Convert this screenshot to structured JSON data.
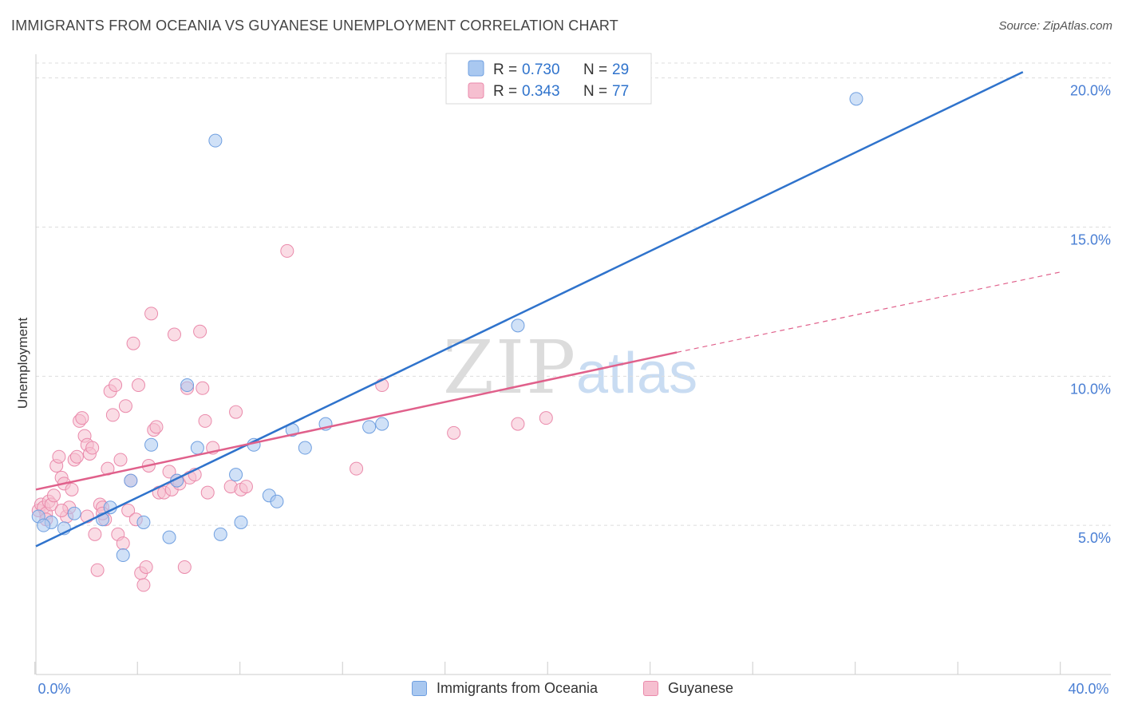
{
  "header": {
    "title": "IMMIGRANTS FROM OCEANIA VS GUYANESE UNEMPLOYMENT CORRELATION CHART",
    "source": "Source: ZipAtlas.com"
  },
  "colors": {
    "blue_fill": "#a9c8f0",
    "blue_stroke": "#6f9fe0",
    "blue_line": "#2f73cc",
    "pink_fill": "#f6bfd0",
    "pink_stroke": "#ea8aab",
    "pink_line": "#e0608b",
    "tick": "#4a7fd4",
    "grid": "#dddddd"
  },
  "legend": {
    "r_label": "R =",
    "n_label": "N =",
    "series": [
      {
        "r": "0.730",
        "n": "29"
      },
      {
        "r": "0.343",
        "n": "77"
      }
    ]
  },
  "bottom_legend": {
    "items": [
      {
        "label": "Immigrants from Oceania"
      },
      {
        "label": "Guyanese"
      }
    ]
  },
  "watermark": {
    "zip": "ZIP",
    "atlas": "atlas"
  },
  "chart_data": {
    "type": "scatter",
    "title": "IMMIGRANTS FROM OCEANIA VS GUYANESE UNEMPLOYMENT CORRELATION CHART",
    "xlabel": "",
    "ylabel": "Unemployment",
    "xlim": [
      0,
      40
    ],
    "ylim": [
      0,
      20.5
    ],
    "x_tick_labels": [
      "0.0%",
      "40.0%"
    ],
    "y_ticks": [
      5,
      10,
      15,
      20
    ],
    "y_tick_labels": [
      "5.0%",
      "10.0%",
      "15.0%",
      "20.0%"
    ],
    "series": [
      {
        "name": "Immigrants from Oceania",
        "r": 0.73,
        "n": 29,
        "points": [
          [
            0.1,
            5.3
          ],
          [
            0.6,
            5.1
          ],
          [
            1.1,
            4.9
          ],
          [
            1.5,
            5.4
          ],
          [
            2.6,
            5.2
          ],
          [
            2.9,
            5.6
          ],
          [
            3.4,
            4.0
          ],
          [
            3.7,
            6.5
          ],
          [
            4.2,
            5.1
          ],
          [
            4.5,
            7.7
          ],
          [
            5.2,
            4.6
          ],
          [
            5.5,
            6.5
          ],
          [
            5.9,
            9.7
          ],
          [
            6.3,
            7.6
          ],
          [
            7.0,
            17.9
          ],
          [
            7.2,
            4.7
          ],
          [
            7.8,
            6.7
          ],
          [
            8.0,
            5.1
          ],
          [
            8.5,
            7.7
          ],
          [
            9.1,
            6.0
          ],
          [
            9.4,
            5.8
          ],
          [
            10.0,
            8.2
          ],
          [
            10.5,
            7.6
          ],
          [
            11.3,
            8.4
          ],
          [
            13.0,
            8.3
          ],
          [
            13.5,
            8.4
          ],
          [
            18.8,
            11.7
          ],
          [
            32.0,
            19.3
          ],
          [
            0.3,
            5.0
          ]
        ],
        "trend": {
          "x1": 0.0,
          "y1": 4.3,
          "x2": 38.5,
          "y2": 20.2
        }
      },
      {
        "name": "Guyanese",
        "r": 0.343,
        "n": 77,
        "points": [
          [
            0.1,
            5.5
          ],
          [
            0.2,
            5.7
          ],
          [
            0.3,
            5.6
          ],
          [
            0.4,
            5.4
          ],
          [
            0.5,
            5.8
          ],
          [
            0.6,
            5.7
          ],
          [
            0.7,
            6.0
          ],
          [
            0.8,
            7.0
          ],
          [
            0.9,
            7.3
          ],
          [
            1.0,
            6.6
          ],
          [
            1.1,
            6.4
          ],
          [
            1.2,
            5.3
          ],
          [
            1.3,
            5.6
          ],
          [
            1.4,
            6.2
          ],
          [
            1.5,
            7.2
          ],
          [
            1.6,
            7.3
          ],
          [
            1.7,
            8.5
          ],
          [
            1.8,
            8.6
          ],
          [
            1.9,
            8.0
          ],
          [
            2.0,
            7.7
          ],
          [
            2.1,
            7.4
          ],
          [
            2.2,
            7.6
          ],
          [
            2.3,
            4.7
          ],
          [
            2.4,
            3.5
          ],
          [
            2.5,
            5.7
          ],
          [
            2.6,
            5.6
          ],
          [
            2.7,
            5.2
          ],
          [
            2.8,
            6.9
          ],
          [
            2.9,
            9.5
          ],
          [
            3.0,
            8.7
          ],
          [
            3.1,
            9.7
          ],
          [
            3.2,
            4.7
          ],
          [
            3.3,
            7.2
          ],
          [
            3.4,
            4.4
          ],
          [
            3.5,
            9.0
          ],
          [
            3.6,
            5.5
          ],
          [
            3.7,
            6.5
          ],
          [
            3.8,
            11.1
          ],
          [
            3.9,
            5.2
          ],
          [
            4.0,
            9.7
          ],
          [
            4.1,
            3.4
          ],
          [
            4.2,
            3.0
          ],
          [
            4.3,
            3.6
          ],
          [
            4.4,
            7.0
          ],
          [
            4.5,
            12.1
          ],
          [
            4.6,
            8.2
          ],
          [
            4.7,
            8.3
          ],
          [
            4.8,
            6.1
          ],
          [
            5.0,
            6.1
          ],
          [
            5.2,
            6.8
          ],
          [
            5.3,
            6.2
          ],
          [
            5.4,
            11.4
          ],
          [
            5.5,
            6.5
          ],
          [
            5.6,
            6.4
          ],
          [
            5.8,
            3.6
          ],
          [
            5.9,
            9.6
          ],
          [
            6.0,
            6.6
          ],
          [
            6.2,
            6.7
          ],
          [
            6.4,
            11.5
          ],
          [
            6.5,
            9.6
          ],
          [
            6.6,
            8.5
          ],
          [
            6.7,
            6.1
          ],
          [
            6.9,
            7.6
          ],
          [
            7.6,
            6.3
          ],
          [
            7.8,
            8.8
          ],
          [
            8.0,
            6.2
          ],
          [
            8.2,
            6.3
          ],
          [
            9.8,
            14.2
          ],
          [
            12.5,
            6.9
          ],
          [
            13.5,
            9.7
          ],
          [
            16.3,
            8.1
          ],
          [
            18.8,
            8.4
          ],
          [
            19.9,
            8.6
          ],
          [
            0.4,
            5.2
          ],
          [
            1.0,
            5.5
          ],
          [
            2.0,
            5.3
          ],
          [
            2.6,
            5.4
          ]
        ],
        "trend": {
          "x1": 0.0,
          "y1": 6.2,
          "x2": 25.0,
          "y2": 10.8
        },
        "trend_dashed": {
          "x1": 25.0,
          "y1": 10.8,
          "x2": 40.0,
          "y2": 13.5
        }
      }
    ],
    "annotations": [
      "ZIPatlas"
    ]
  }
}
